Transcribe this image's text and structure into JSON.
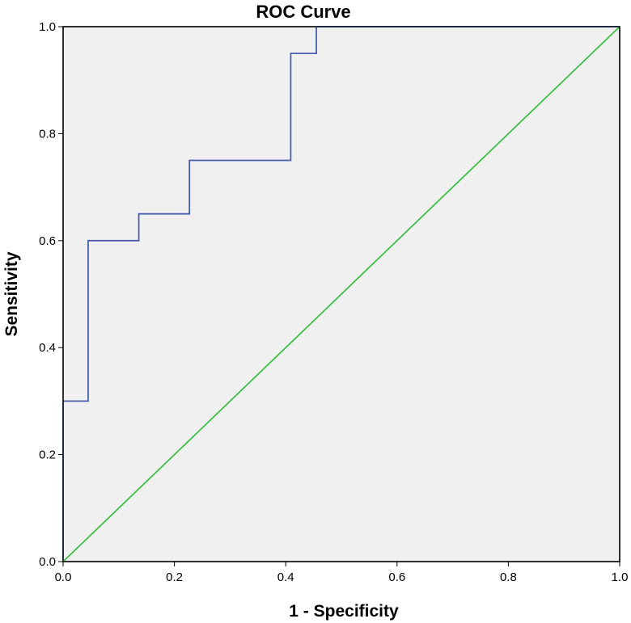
{
  "chart_data": {
    "type": "line",
    "title": "ROC Curve",
    "xlabel": "1 - Specificity",
    "ylabel": "Sensitivity",
    "xlim": [
      0,
      1
    ],
    "ylim": [
      0,
      1
    ],
    "x_ticks": [
      "0.0",
      "0.2",
      "0.4",
      "0.6",
      "0.8",
      "1.0"
    ],
    "y_ticks": [
      "0.0",
      "0.2",
      "0.4",
      "0.6",
      "0.8",
      "1.0"
    ],
    "grid": false,
    "legend": "none",
    "series": [
      {
        "color": "#4a5fb0",
        "step": true,
        "x": [
          0.0,
          0.0,
          0.045,
          0.045,
          0.136,
          0.136,
          0.227,
          0.227,
          0.409,
          0.409,
          0.455,
          0.455,
          1.0
        ],
        "y": [
          0.0,
          0.3,
          0.3,
          0.6,
          0.6,
          0.65,
          0.65,
          0.75,
          0.75,
          0.95,
          0.95,
          1.0,
          1.0
        ]
      },
      {
        "color": "#3fbf4a",
        "step": false,
        "x": [
          0.0,
          1.0
        ],
        "y": [
          0.0,
          1.0
        ]
      }
    ],
    "plot_background": "#f0f0f0"
  }
}
